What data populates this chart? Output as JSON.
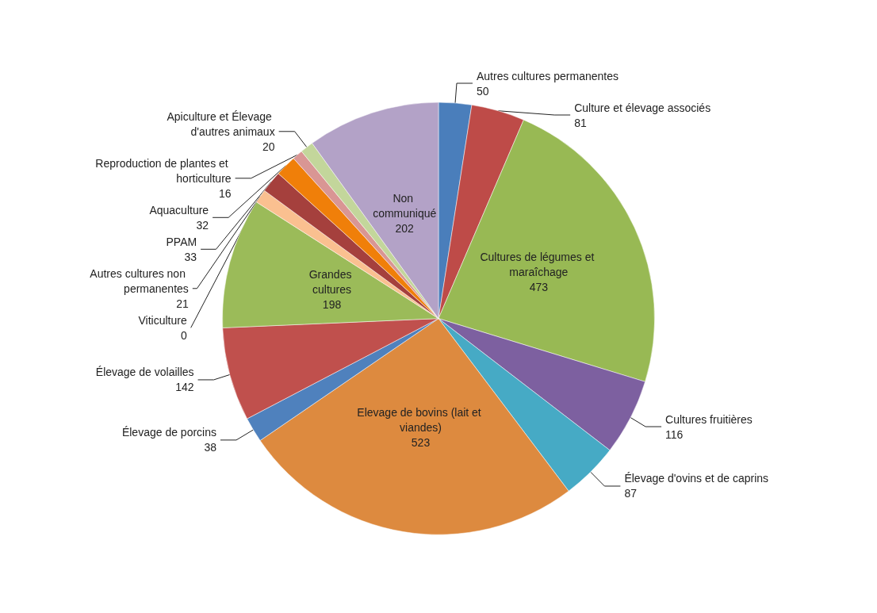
{
  "chart_data": {
    "type": "pie",
    "categories": [
      "Autres cultures permanentes",
      "Culture et élevage associés",
      "Cultures de légumes et maraîchage",
      "Cultures fruitières",
      "Élevage d'ovins et de caprins",
      "Elevage de bovins (lait et viandes)",
      "Élevage de porcins",
      "Élevage de volailles",
      "Grandes cultures",
      "Viticulture",
      "Autres cultures non permanentes",
      "PPAM",
      "Aquaculture",
      "Reproduction de plantes et horticulture",
      "Apiculture et Élevage d'autres animaux",
      "Non communiqué"
    ],
    "values": [
      50,
      81,
      473,
      116,
      87,
      523,
      38,
      142,
      198,
      0,
      21,
      33,
      32,
      16,
      20,
      202
    ],
    "colors": [
      "#4a7ebb",
      "#be4b48",
      "#98b954",
      "#7d60a0",
      "#46aac5",
      "#dd8a3f",
      "#4f81bd",
      "#c0504d",
      "#9bbb59",
      "#8064a2",
      "#fac090",
      "#a5403d",
      "#f07f09",
      "#d99694",
      "#c3d69b",
      "#b3a2c7"
    ],
    "value_labels": [
      "50",
      "81",
      "473",
      "116",
      "87",
      "523",
      "38",
      "142",
      "198",
      "0",
      "21",
      "33",
      "32",
      "16",
      "20",
      "202"
    ],
    "data_labels": true,
    "legend": false
  }
}
